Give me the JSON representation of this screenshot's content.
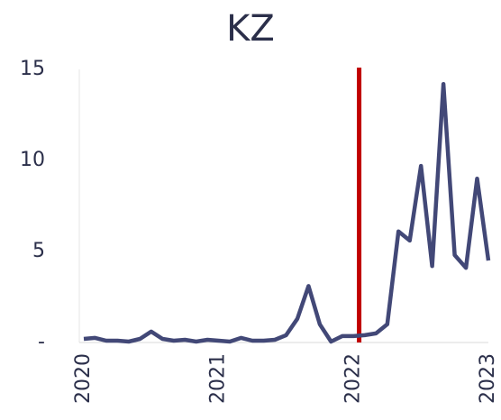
{
  "chart_data": {
    "type": "line",
    "title": "KZ",
    "categories": [
      "2020",
      null,
      null,
      null,
      null,
      null,
      null,
      null,
      null,
      null,
      null,
      null,
      "2021",
      null,
      null,
      null,
      null,
      null,
      null,
      null,
      null,
      null,
      null,
      null,
      "2022",
      null,
      null,
      null,
      null,
      null,
      null,
      null,
      null,
      null,
      null,
      null,
      "2023"
    ],
    "series": [
      {
        "name": "KZ",
        "color": "#424877",
        "values": [
          0.2,
          0.25,
          0.1,
          0.1,
          0.05,
          0.2,
          0.6,
          0.2,
          0.1,
          0.15,
          0.05,
          0.15,
          0.1,
          0.05,
          0.25,
          0.1,
          0.1,
          0.15,
          0.4,
          1.3,
          3.1,
          1.0,
          0.05,
          0.35,
          0.35,
          0.4,
          0.5,
          1.0,
          6.1,
          5.6,
          9.7,
          4.2,
          14.2,
          4.8,
          4.1,
          9.0,
          4.5
        ]
      }
    ],
    "reference_line": {
      "x": 24.5,
      "color": "#c00000"
    },
    "ylim": [
      0,
      15
    ],
    "yticks": [
      {
        "value": 0,
        "label": "-"
      },
      5,
      10,
      15
    ],
    "grid": false
  }
}
